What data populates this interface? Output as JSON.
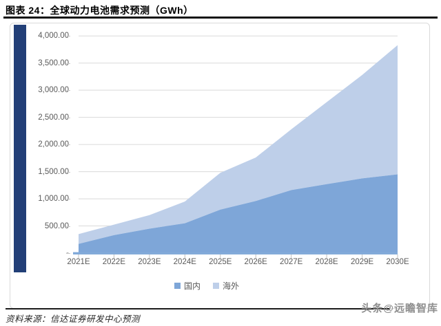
{
  "figure": {
    "title": "图表 24：全球动力电池需求预测（GWh）",
    "source": "资料来源：信达证券研发中心预测",
    "watermark": "头条@远瞻智库"
  },
  "chart_data": {
    "type": "area",
    "stacked": true,
    "title": "全球动力电池需求预测（GWh）",
    "categories": [
      "2021E",
      "2022E",
      "2023E",
      "2024E",
      "2025E",
      "2026E",
      "2027E",
      "2028E",
      "2029E",
      "2030E"
    ],
    "series": [
      {
        "name": "国内",
        "color": "#7EA6D8",
        "values": [
          170,
          330,
          450,
          550,
          800,
          960,
          1160,
          1270,
          1375,
          1450
        ]
      },
      {
        "name": "海外",
        "color": "#BECFE9",
        "values": [
          180,
          195,
          250,
          400,
          680,
          800,
          1120,
          1510,
          1905,
          2380
        ]
      }
    ],
    "stacked_totals": [
      350,
      525,
      700,
      950,
      1480,
      1760,
      2280,
      2780,
      3280,
      3830
    ],
    "xlabel": "",
    "ylabel": "",
    "ylim": [
      0,
      4000
    ],
    "ytick_step": 500,
    "ytick_labels_top_to_bottom": [
      "4,000.00",
      "3,500.00",
      "3,000.00",
      "2,500.00",
      "2,000.00",
      "1,500.00",
      "1,000.00",
      "500.00",
      "-"
    ],
    "grid": true,
    "gridline_color": "#d9d9d9",
    "axis_line_color": "#82AAD9",
    "tick_color": "#bfbfbf",
    "label_color": "#595959",
    "legend_position": "bottom"
  },
  "colors": {
    "accent_bar": "#223F77",
    "frame_border": "#d9d9d9",
    "title_rule": "#111111"
  }
}
